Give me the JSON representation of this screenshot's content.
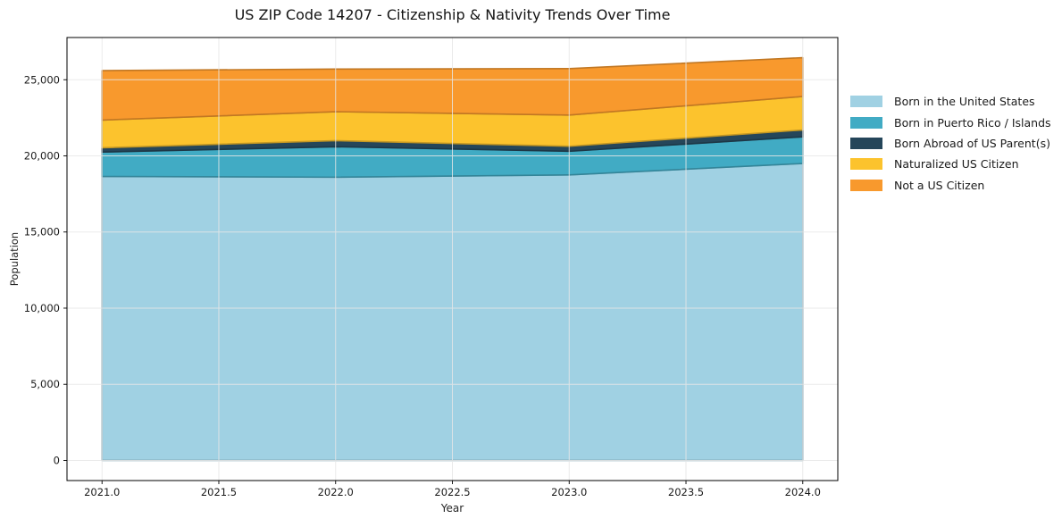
{
  "title": "US ZIP Code 14207 - Citizenship & Nativity Trends Over Time",
  "chart_data": {
    "type": "area",
    "stacked": true,
    "title": "US ZIP Code 14207 - Citizenship & Nativity Trends Over Time",
    "xlabel": "Year",
    "ylabel": "Population",
    "x": [
      2021,
      2022,
      2023,
      2024
    ],
    "series": [
      {
        "name": "Born in the United States",
        "color": "#a0d1e3",
        "values": [
          18650,
          18600,
          18750,
          19500
        ]
      },
      {
        "name": "Born in Puerto Rico / Islands",
        "color": "#41abc4",
        "values": [
          1600,
          2000,
          1550,
          1750
        ]
      },
      {
        "name": "Born Abroad of US Parent(s)",
        "color": "#25465a",
        "values": [
          280,
          400,
          330,
          450
        ]
      },
      {
        "name": "Naturalized US Citizen",
        "color": "#fcc32d",
        "values": [
          1820,
          1900,
          2050,
          2200
        ]
      },
      {
        "name": "Not a US Citizen",
        "color": "#f8992d",
        "values": [
          3250,
          2800,
          3050,
          2550
        ]
      }
    ],
    "stacked_totals": [
      25600,
      25700,
      25730,
      26450
    ],
    "xticks": {
      "values": [
        2021.0,
        2021.5,
        2022.0,
        2022.5,
        2023.0,
        2023.5,
        2024.0
      ],
      "labels": [
        "2021.0",
        "2021.5",
        "2022.0",
        "2022.5",
        "2023.0",
        "2023.5",
        "2024.0"
      ]
    },
    "yticks": {
      "values": [
        0,
        5000,
        10000,
        15000,
        20000,
        25000
      ],
      "labels": [
        "0",
        "5,000",
        "10,000",
        "15,000",
        "20,000",
        "25,000"
      ]
    },
    "xlim": [
      2020.85,
      2024.15
    ],
    "ylim": [
      -1322,
      27772
    ],
    "grid": true,
    "grid_color": "#e7e7e7",
    "axis_color": "#000000",
    "tick_label_color": "#1a1a1a",
    "legend_position": "right-outside",
    "legend_labels": [
      "Born in the United States",
      "Born in Puerto Rico / Islands",
      "Born Abroad of US Parent(s)",
      "Naturalized US Citizen",
      "Not a US Citizen"
    ]
  }
}
